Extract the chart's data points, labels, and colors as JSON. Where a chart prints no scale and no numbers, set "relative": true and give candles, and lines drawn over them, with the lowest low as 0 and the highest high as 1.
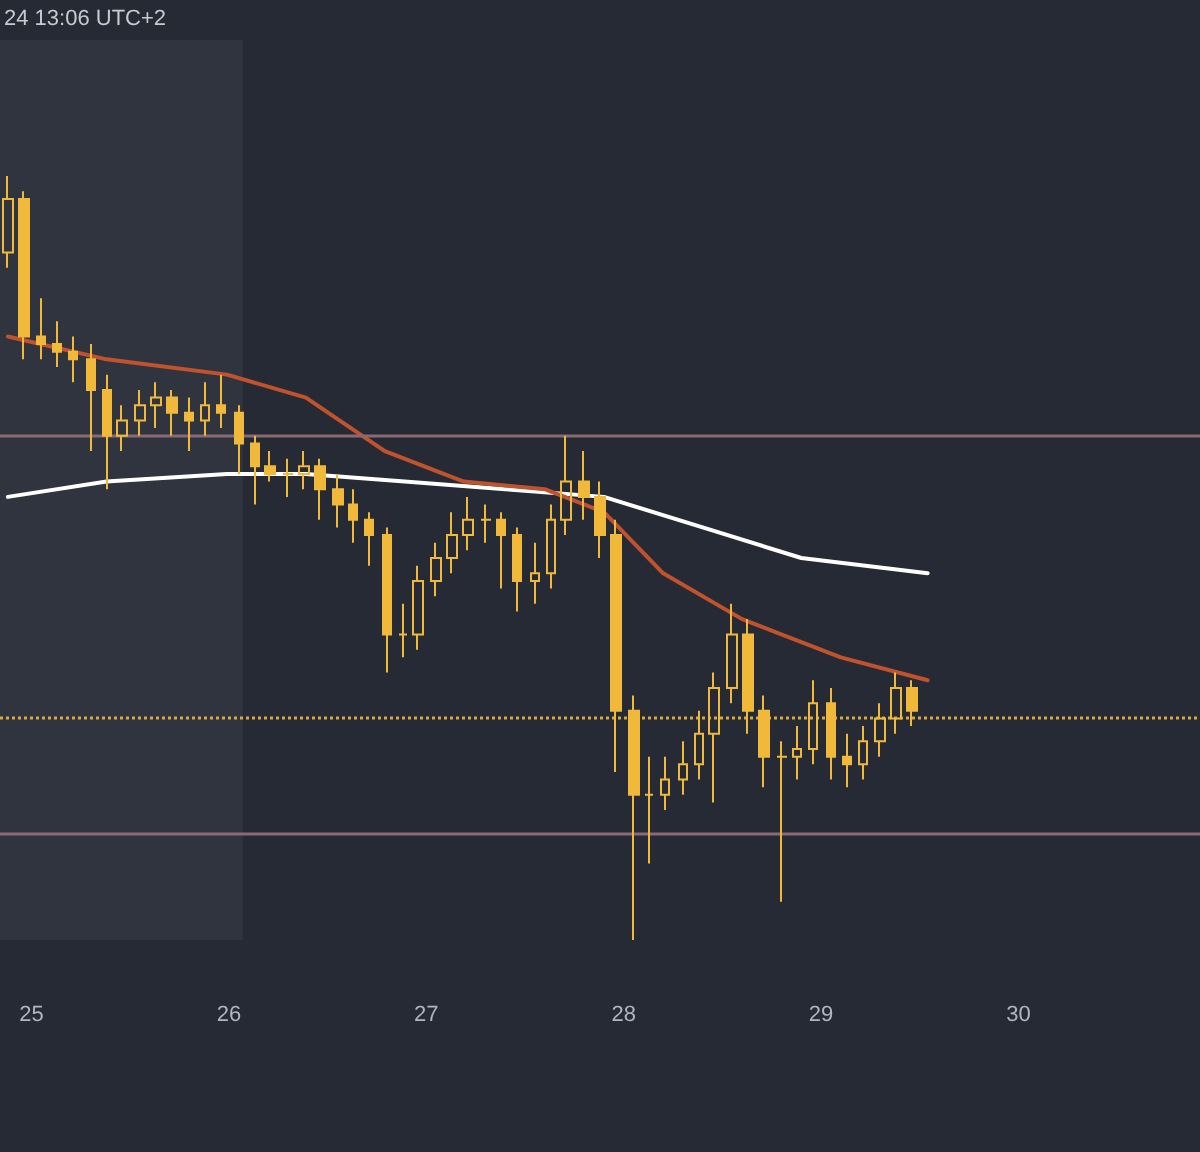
{
  "chart_data": {
    "type": "candlestick",
    "relative": true,
    "annotations": [
      "24 13:06 UTC+2"
    ],
    "xlim": [
      24.84,
      30.92
    ],
    "xticks": [
      25,
      26,
      27,
      28,
      29,
      30
    ],
    "grid": false,
    "marker": "none",
    "line_style": "solid",
    "bands": [
      {
        "axis": "x",
        "from": 24.84,
        "to": 26.07,
        "color": "#30343f"
      }
    ],
    "ref_lines": [
      {
        "axis": "y",
        "value": 0.66,
        "color": "#8a6a72",
        "line_style": "solid"
      },
      {
        "axis": "y",
        "value": 0.14,
        "color": "#8a6a72",
        "line_style": "solid"
      },
      {
        "axis": "y",
        "value": 0.29,
        "color": "#d9a93a",
        "line_style": "dotted"
      }
    ],
    "series": [
      {
        "type": "line",
        "color": "#ffffff",
        "x": [
          24.88,
          25.38,
          25.99,
          26.39,
          26.89,
          27.4,
          27.9,
          28.4,
          28.9,
          29.54
        ],
        "values": [
          0.58,
          0.6,
          0.61,
          0.61,
          0.6,
          0.59,
          0.58,
          0.54,
          0.5,
          0.48
        ]
      },
      {
        "type": "line",
        "color": "#c0522e",
        "x": [
          24.88,
          25.38,
          25.99,
          26.39,
          26.79,
          27.19,
          27.6,
          27.9,
          28.2,
          28.6,
          29.1,
          29.54
        ],
        "values": [
          0.79,
          0.76,
          0.74,
          0.71,
          0.64,
          0.6,
          0.59,
          0.56,
          0.48,
          0.42,
          0.37,
          0.34
        ]
      },
      {
        "color": "#f0b93a",
        "x": [
          24.88,
          24.96,
          25.05,
          25.13,
          25.21,
          25.3,
          25.38,
          25.46,
          25.55,
          25.63,
          25.71,
          25.8,
          25.88,
          25.96,
          26.05,
          26.13,
          26.21,
          26.3,
          26.38,
          26.46,
          26.55,
          26.63,
          26.71,
          26.8,
          26.88,
          26.96,
          27.05,
          27.13,
          27.21,
          27.3,
          27.38,
          27.46,
          27.55,
          27.63,
          27.71,
          27.8,
          27.88,
          27.96,
          28.05,
          28.13,
          28.21,
          28.3,
          28.38,
          28.46,
          28.55,
          28.63,
          28.71,
          28.8,
          28.88,
          28.96,
          29.05,
          29.13,
          29.21,
          29.3,
          29.38,
          29.46
        ],
        "ohlc": [
          [
            0.9,
            1.0,
            0.88,
            0.97
          ],
          [
            0.97,
            0.98,
            0.76,
            0.79
          ],
          [
            0.79,
            0.84,
            0.76,
            0.78
          ],
          [
            0.78,
            0.81,
            0.75,
            0.77
          ],
          [
            0.77,
            0.79,
            0.73,
            0.76
          ],
          [
            0.76,
            0.78,
            0.64,
            0.72
          ],
          [
            0.72,
            0.74,
            0.59,
            0.66
          ],
          [
            0.66,
            0.7,
            0.64,
            0.68
          ],
          [
            0.68,
            0.72,
            0.66,
            0.7
          ],
          [
            0.7,
            0.73,
            0.67,
            0.71
          ],
          [
            0.71,
            0.72,
            0.66,
            0.69
          ],
          [
            0.69,
            0.71,
            0.64,
            0.68
          ],
          [
            0.68,
            0.73,
            0.66,
            0.7
          ],
          [
            0.7,
            0.74,
            0.67,
            0.69
          ],
          [
            0.69,
            0.7,
            0.61,
            0.65
          ],
          [
            0.65,
            0.66,
            0.57,
            0.62
          ],
          [
            0.62,
            0.64,
            0.6,
            0.61
          ],
          [
            0.61,
            0.63,
            0.58,
            0.61
          ],
          [
            0.61,
            0.64,
            0.59,
            0.62
          ],
          [
            0.62,
            0.63,
            0.55,
            0.59
          ],
          [
            0.59,
            0.61,
            0.54,
            0.57
          ],
          [
            0.57,
            0.59,
            0.52,
            0.55
          ],
          [
            0.55,
            0.56,
            0.49,
            0.53
          ],
          [
            0.53,
            0.54,
            0.35,
            0.4
          ],
          [
            0.4,
            0.44,
            0.37,
            0.4
          ],
          [
            0.4,
            0.49,
            0.38,
            0.47
          ],
          [
            0.47,
            0.52,
            0.45,
            0.5
          ],
          [
            0.5,
            0.56,
            0.48,
            0.53
          ],
          [
            0.53,
            0.58,
            0.51,
            0.55
          ],
          [
            0.55,
            0.57,
            0.52,
            0.55
          ],
          [
            0.55,
            0.56,
            0.46,
            0.53
          ],
          [
            0.53,
            0.54,
            0.43,
            0.47
          ],
          [
            0.47,
            0.52,
            0.44,
            0.48
          ],
          [
            0.48,
            0.57,
            0.46,
            0.55
          ],
          [
            0.55,
            0.66,
            0.53,
            0.6
          ],
          [
            0.6,
            0.64,
            0.55,
            0.58
          ],
          [
            0.58,
            0.6,
            0.5,
            0.53
          ],
          [
            0.53,
            0.55,
            0.22,
            0.3
          ],
          [
            0.3,
            0.32,
            0.0,
            0.19
          ],
          [
            0.19,
            0.24,
            0.1,
            0.19
          ],
          [
            0.19,
            0.24,
            0.17,
            0.21
          ],
          [
            0.21,
            0.26,
            0.19,
            0.23
          ],
          [
            0.23,
            0.3,
            0.21,
            0.27
          ],
          [
            0.27,
            0.35,
            0.18,
            0.33
          ],
          [
            0.33,
            0.44,
            0.31,
            0.4
          ],
          [
            0.4,
            0.42,
            0.27,
            0.3
          ],
          [
            0.3,
            0.32,
            0.2,
            0.24
          ],
          [
            0.24,
            0.26,
            0.05,
            0.24
          ],
          [
            0.24,
            0.28,
            0.21,
            0.25
          ],
          [
            0.25,
            0.34,
            0.23,
            0.31
          ],
          [
            0.31,
            0.33,
            0.21,
            0.24
          ],
          [
            0.24,
            0.27,
            0.2,
            0.23
          ],
          [
            0.23,
            0.28,
            0.21,
            0.26
          ],
          [
            0.26,
            0.31,
            0.24,
            0.29
          ],
          [
            0.29,
            0.35,
            0.27,
            0.33
          ],
          [
            0.33,
            0.34,
            0.28,
            0.3
          ]
        ]
      }
    ]
  }
}
